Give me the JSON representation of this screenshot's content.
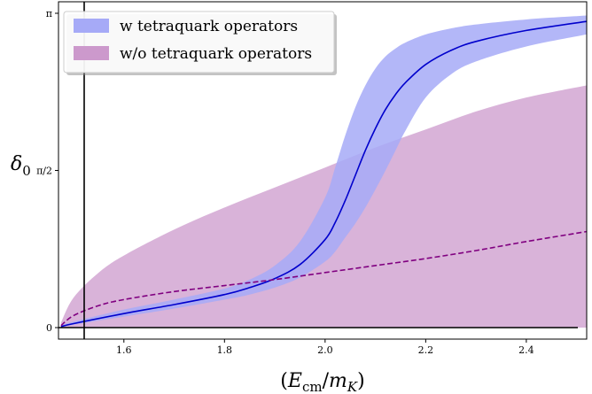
{
  "chart_data": {
    "type": "line",
    "xlabel": "(E_cm/m_K)",
    "xlabel_parts": {
      "open": "(",
      "E": "E",
      "sub_cm": "cm",
      "slash": "/",
      "m": "m",
      "sub_K": "K",
      "close": ")"
    },
    "ylabel": "δ_0",
    "ylabel_parts": {
      "delta": "δ",
      "sub": "0"
    },
    "xlim": [
      1.47,
      2.52
    ],
    "ylim": [
      0,
      3.14159
    ],
    "x_ticks": [
      {
        "value": 1.6,
        "label": "1.6"
      },
      {
        "value": 1.8,
        "label": "1.8"
      },
      {
        "value": 2.0,
        "label": "2.0"
      },
      {
        "value": 2.2,
        "label": "2.2"
      },
      {
        "value": 2.4,
        "label": "2.4"
      }
    ],
    "y_ticks": [
      {
        "value": 0,
        "label": "0"
      },
      {
        "value": 1.5708,
        "label": "π/2"
      },
      {
        "value": 3.14159,
        "label": "π"
      }
    ],
    "grid": false,
    "legend_position": "top-left",
    "series": [
      {
        "name": "w tetraquark operators",
        "color": "#0000cc",
        "band_color": "#a6aaf7",
        "line_style": "solid",
        "x": [
          1.475,
          1.5,
          1.6,
          1.7,
          1.8,
          1.85,
          1.9,
          1.95,
          2.0,
          2.02,
          2.04,
          2.06,
          2.08,
          2.1,
          2.12,
          2.14,
          2.16,
          2.2,
          2.25,
          2.3,
          2.4,
          2.52
        ],
        "y": [
          0.01,
          0.04,
          0.14,
          0.23,
          0.33,
          0.4,
          0.49,
          0.63,
          0.88,
          1.05,
          1.27,
          1.52,
          1.77,
          1.99,
          2.18,
          2.33,
          2.45,
          2.63,
          2.77,
          2.86,
          2.97,
          3.06
        ],
        "lower": [
          0.01,
          0.03,
          0.11,
          0.19,
          0.28,
          0.33,
          0.4,
          0.5,
          0.66,
          0.76,
          0.9,
          1.04,
          1.2,
          1.38,
          1.57,
          1.77,
          1.97,
          2.3,
          2.53,
          2.66,
          2.81,
          2.93
        ],
        "upper": [
          0.02,
          0.06,
          0.18,
          0.28,
          0.39,
          0.48,
          0.62,
          0.86,
          1.3,
          1.6,
          1.92,
          2.2,
          2.42,
          2.59,
          2.71,
          2.79,
          2.85,
          2.93,
          2.99,
          3.03,
          3.08,
          3.12
        ]
      },
      {
        "name": "w/o tetraquark operators",
        "color": "#800080",
        "band_color": "#cc99cc",
        "line_style": "dashed",
        "x": [
          1.475,
          1.5,
          1.55,
          1.6,
          1.7,
          1.8,
          1.9,
          2.0,
          2.1,
          2.2,
          2.3,
          2.4,
          2.52
        ],
        "y": [
          0.02,
          0.12,
          0.22,
          0.28,
          0.36,
          0.42,
          0.48,
          0.55,
          0.62,
          0.69,
          0.77,
          0.86,
          0.96
        ],
        "lower": [
          0.0,
          0.0,
          0.0,
          0.0,
          0.0,
          0.0,
          0.0,
          0.0,
          0.0,
          0.0,
          0.0,
          0.0,
          0.0
        ],
        "upper": [
          0.05,
          0.3,
          0.55,
          0.72,
          0.98,
          1.2,
          1.4,
          1.6,
          1.8,
          1.98,
          2.16,
          2.3,
          2.42
        ]
      }
    ]
  }
}
